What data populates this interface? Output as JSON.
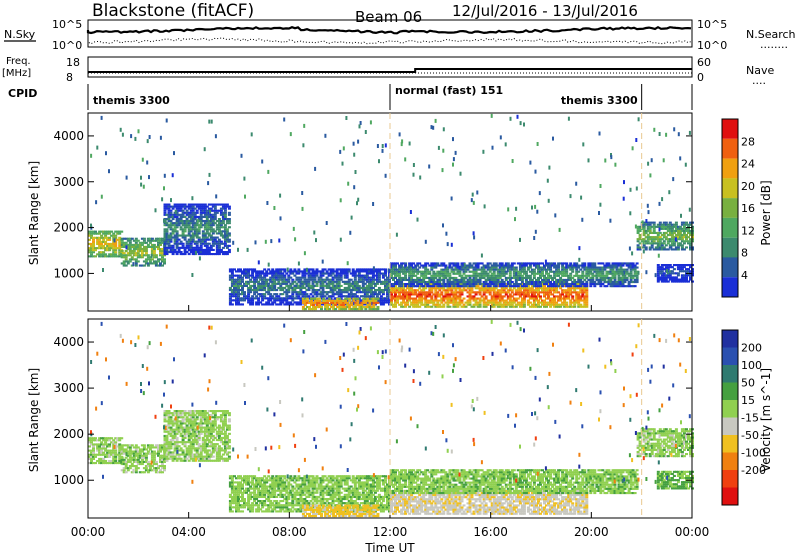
{
  "header": {
    "station": "Blackstone (fitACF)",
    "beam": "Beam 06",
    "date_range": "12/Jul/2016 - 13/Jul/2016"
  },
  "top_panels": {
    "nsky_label": "N.Sky",
    "nsearch_label": "N.Search",
    "nsearch_key": "........",
    "noise_tick_hi": "10^5",
    "noise_tick_lo": "10^0",
    "freq_label": "Freq.",
    "freq_unit": "[MHz]",
    "freq_ticks": [
      "18",
      "8"
    ],
    "nave_label": "Nave",
    "nave_key": "....",
    "nave_ticks": [
      "60",
      "0"
    ],
    "cpid_label": "CPID",
    "cpid_segments": [
      {
        "name": "themis 3300",
        "start_hour": 0,
        "end_hour": 12
      },
      {
        "name": "normal (fast) 151",
        "start_hour": 12,
        "end_hour": 22
      },
      {
        "name": "themis 3300",
        "start_hour": 22,
        "end_hour": 24
      }
    ]
  },
  "power_panel": {
    "ylabel": "Slant Range [km]",
    "yticks": [
      "1000",
      "2000",
      "3000",
      "4000"
    ],
    "colorbar_label": "Power [dB]",
    "colorbar_ticks": [
      "4",
      "8",
      "12",
      "16",
      "20",
      "24",
      "28"
    ],
    "colorbar_colors": [
      "#1a2fd6",
      "#2a5aa0",
      "#3c8a6e",
      "#4fa860",
      "#78b040",
      "#c8c020",
      "#f0a010",
      "#f06010",
      "#e01010"
    ]
  },
  "velocity_panel": {
    "ylabel": "Slant Range [km]",
    "yticks": [
      "1000",
      "2000",
      "3000",
      "4000"
    ],
    "colorbar_label": "Velocity [m s^-1]",
    "colorbar_ticks": [
      "200",
      "100",
      "50",
      "15",
      "-15",
      "-50",
      "-100",
      "-200"
    ],
    "colorbar_colors": [
      "#2030a0",
      "#2a50b0",
      "#2f7a70",
      "#45a040",
      "#90d050",
      "#c8c8c0",
      "#f0c020",
      "#f08010",
      "#f04010",
      "#e01010"
    ]
  },
  "xaxis": {
    "label": "Time UT",
    "ticks": [
      "00:00",
      "04:00",
      "08:00",
      "12:00",
      "16:00",
      "20:00",
      "00:00"
    ]
  },
  "chart_data": {
    "type": "heatmap",
    "title": "Blackstone (fitACF)",
    "x_range_hours": [
      0,
      24
    ],
    "y_range_km": [
      180,
      4500
    ],
    "xlabel": "Time UT",
    "ylabel": "Slant Range [km]",
    "power_range_db": [
      0,
      32
    ],
    "velocity_range": [
      -250,
      250
    ],
    "echo_regions": [
      {
        "t0": 0.0,
        "t1": 1.3,
        "r0": 1350,
        "r1": 1900,
        "power": 22,
        "velocity": 0
      },
      {
        "t0": 1.3,
        "t1": 3.0,
        "r0": 1150,
        "r1": 1750,
        "power": 18,
        "velocity": 0
      },
      {
        "t0": 3.0,
        "t1": 5.6,
        "r0": 1400,
        "r1": 2500,
        "power": 10,
        "velocity": 0
      },
      {
        "t0": 5.6,
        "t1": 12.0,
        "r0": 300,
        "r1": 1100,
        "power": 9,
        "velocity": 5
      },
      {
        "t0": 8.5,
        "t1": 11.5,
        "r0": 200,
        "r1": 450,
        "power": 26,
        "velocity": -60
      },
      {
        "t0": 12.0,
        "t1": 19.8,
        "r0": 250,
        "r1": 750,
        "power": 28,
        "velocity": -40
      },
      {
        "t0": 12.0,
        "t1": 21.8,
        "r0": 700,
        "r1": 1200,
        "power": 12,
        "velocity": 5
      },
      {
        "t0": 21.8,
        "t1": 24.0,
        "r0": 1500,
        "r1": 2100,
        "power": 16,
        "velocity": 0
      },
      {
        "t0": 22.6,
        "t1": 24.0,
        "r0": 800,
        "r1": 1200,
        "power": 6,
        "velocity": 20
      }
    ]
  }
}
